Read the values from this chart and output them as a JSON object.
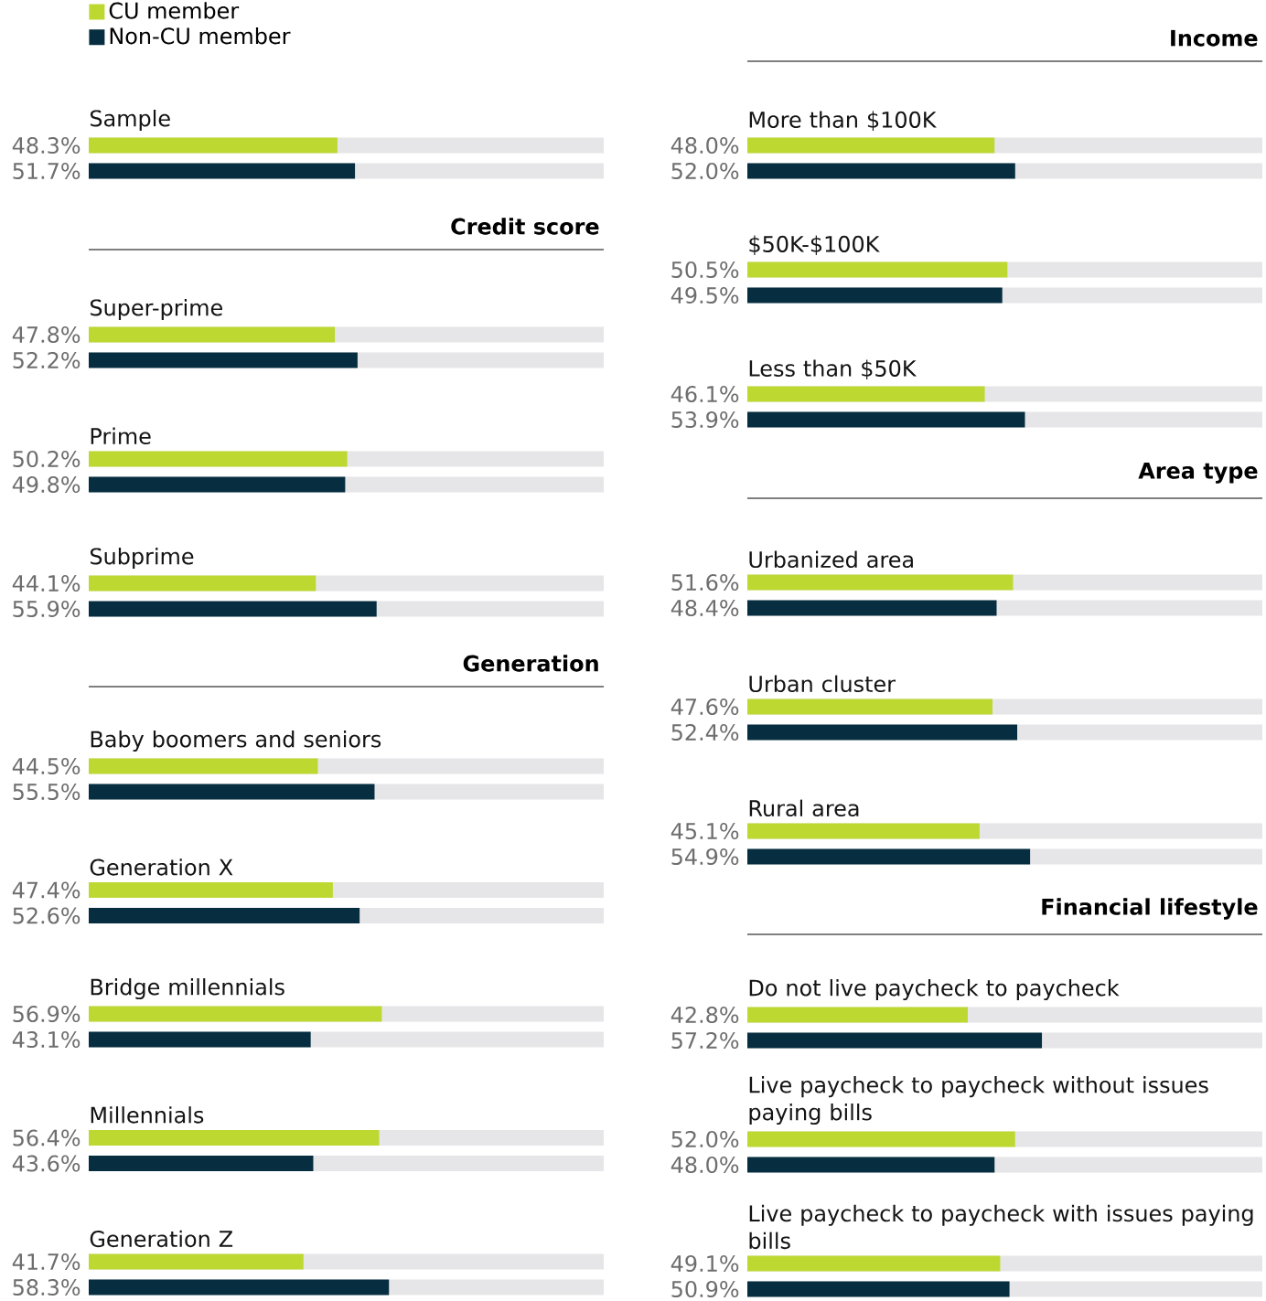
{
  "chart_data": [
    {
      "type": "bar",
      "orientation": "horizontal",
      "legend": "top left",
      "xlim": [
        0,
        100
      ],
      "categories": [
        "Sample"
      ],
      "series": [
        {
          "name": "CU member",
          "color": "#bed832",
          "values": [
            48.3
          ],
          "value_labels": [
            "48.3%"
          ]
        },
        {
          "name": "Non-CU member",
          "color": "#062e40",
          "values": [
            51.7
          ],
          "value_labels": [
            "51.7%"
          ]
        }
      ]
    },
    {
      "type": "bar",
      "orientation": "horizontal",
      "title": "Credit score",
      "xlim": [
        0,
        100
      ],
      "categories": [
        "Super-prime",
        "Prime",
        "Subprime"
      ],
      "series": [
        {
          "color": "#bed832",
          "values": [
            47.8,
            50.2,
            44.1
          ],
          "value_labels": [
            "47.8%",
            "50.2%",
            "44.1%"
          ]
        },
        {
          "color": "#062e40",
          "values": [
            52.2,
            49.8,
            55.9
          ],
          "value_labels": [
            "52.2%",
            "49.8%",
            "55.9%"
          ]
        }
      ]
    },
    {
      "type": "bar",
      "orientation": "horizontal",
      "title": "Generation",
      "xlim": [
        0,
        100
      ],
      "categories": [
        "Baby boomers and seniors",
        "Generation X",
        "Bridge millennials",
        "Millennials",
        "Generation Z"
      ],
      "series": [
        {
          "color": "#bed832",
          "values": [
            44.5,
            47.4,
            56.9,
            56.4,
            41.7
          ],
          "value_labels": [
            "44.5%",
            "47.4%",
            "56.9%",
            "56.4%",
            "41.7%"
          ]
        },
        {
          "color": "#062e40",
          "values": [
            55.5,
            52.6,
            43.1,
            43.6,
            58.3
          ],
          "value_labels": [
            "55.5%",
            "52.6%",
            "43.1%",
            "43.6%",
            "58.3%"
          ]
        }
      ]
    },
    {
      "type": "bar",
      "orientation": "horizontal",
      "title": "Income",
      "xlim": [
        0,
        100
      ],
      "categories": [
        "More than $100K",
        "$50K-$100K",
        "Less than $50K"
      ],
      "series": [
        {
          "color": "#bed832",
          "values": [
            48.0,
            50.5,
            46.1
          ],
          "value_labels": [
            "48.0%",
            "50.5%",
            "46.1%"
          ]
        },
        {
          "color": "#062e40",
          "values": [
            52.0,
            49.5,
            53.9
          ],
          "value_labels": [
            "52.0%",
            "49.5%",
            "53.9%"
          ]
        }
      ]
    },
    {
      "type": "bar",
      "orientation": "horizontal",
      "title": "Area type",
      "xlim": [
        0,
        100
      ],
      "categories": [
        "Urbanized area",
        "Urban cluster",
        "Rural area"
      ],
      "series": [
        {
          "color": "#bed832",
          "values": [
            51.6,
            47.6,
            45.1
          ],
          "value_labels": [
            "51.6%",
            "47.6%",
            "45.1%"
          ]
        },
        {
          "color": "#062e40",
          "values": [
            48.4,
            52.4,
            54.9
          ],
          "value_labels": [
            "48.4%",
            "52.4%",
            "54.9%"
          ]
        }
      ]
    },
    {
      "type": "bar",
      "orientation": "horizontal",
      "title": "Financial lifestyle",
      "xlim": [
        0,
        100
      ],
      "categories": [
        "Do not live paycheck to paycheck",
        "Live paycheck to paycheck without issues paying bills",
        "Live paycheck to paycheck with issues paying bills"
      ],
      "series": [
        {
          "color": "#bed832",
          "values": [
            42.8,
            52.0,
            49.1
          ],
          "value_labels": [
            "42.8%",
            "52.0%",
            "49.1%"
          ]
        },
        {
          "color": "#062e40",
          "values": [
            57.2,
            48.0,
            50.9
          ],
          "value_labels": [
            "57.2%",
            "48.0%",
            "50.9%"
          ]
        }
      ]
    }
  ]
}
